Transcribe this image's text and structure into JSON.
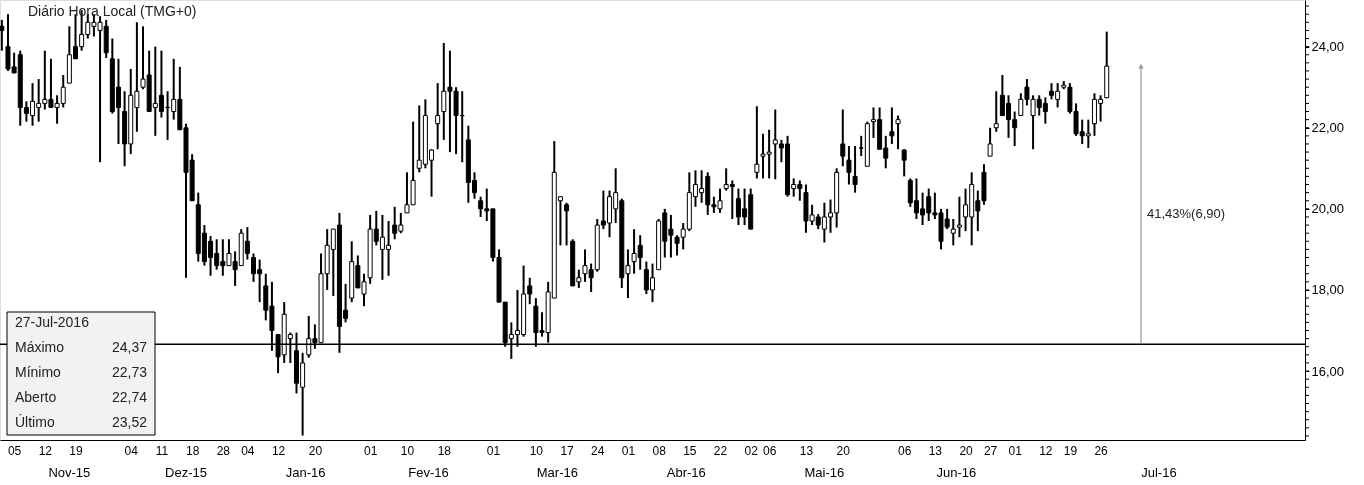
{
  "chart_data": {
    "type": "candlestick",
    "title": "Diário Hora Local (TMG+0)",
    "categories": [
      null,
      null,
      "05",
      null,
      null,
      null,
      null,
      "12",
      null,
      null,
      null,
      null,
      "19",
      null,
      null,
      null,
      null,
      null,
      null,
      null,
      null,
      "04",
      null,
      null,
      null,
      null,
      "11",
      null,
      null,
      null,
      null,
      "18",
      null,
      null,
      null,
      null,
      "28",
      null,
      null,
      null,
      "04",
      null,
      null,
      null,
      null,
      "12",
      null,
      null,
      null,
      null,
      null,
      "20",
      null,
      null,
      null,
      null,
      null,
      null,
      null,
      null,
      "01",
      null,
      null,
      null,
      null,
      null,
      "10",
      null,
      null,
      null,
      null,
      null,
      "18",
      null,
      null,
      null,
      null,
      null,
      null,
      null,
      "01",
      null,
      null,
      null,
      null,
      null,
      null,
      "10",
      null,
      null,
      null,
      null,
      "17",
      null,
      null,
      null,
      null,
      "24",
      null,
      null,
      null,
      null,
      "01",
      null,
      null,
      null,
      null,
      "08",
      null,
      null,
      null,
      null,
      "15",
      null,
      null,
      null,
      null,
      "22",
      null,
      null,
      null,
      null,
      "02",
      null,
      null,
      "06",
      null,
      null,
      null,
      null,
      null,
      "13",
      null,
      null,
      null,
      null,
      null,
      "20",
      null,
      null,
      null,
      null,
      null,
      null,
      null,
      null,
      null,
      "06",
      null,
      null,
      null,
      null,
      "13",
      null,
      null,
      null,
      null,
      "20",
      null,
      null,
      null,
      "27",
      null,
      null,
      null,
      "01",
      null,
      null,
      null,
      null,
      "12",
      null,
      null,
      null,
      "19",
      null,
      null,
      null,
      null,
      "26",
      null,
      null,
      null,
      null,
      null,
      null,
      null,
      null,
      null,
      null,
      null,
      null,
      null,
      null,
      null,
      null,
      null,
      null,
      null,
      null,
      null,
      null,
      null,
      null,
      null,
      null,
      null,
      null,
      null,
      null,
      null,
      null,
      null
    ],
    "ohlc": [
      [
        24.5,
        24.66,
        23.9,
        24.4
      ],
      [
        24.0,
        24.8,
        23.4,
        23.45
      ],
      [
        23.5,
        23.85,
        23.35,
        23.35
      ],
      [
        23.8,
        23.9,
        22.05,
        22.5
      ],
      [
        22.5,
        22.65,
        22.15,
        22.35
      ],
      [
        22.3,
        23.1,
        22.05,
        22.65
      ],
      [
        22.5,
        23.2,
        22.15,
        22.6
      ],
      [
        22.6,
        23.9,
        22.45,
        22.7
      ],
      [
        22.7,
        23.7,
        22.5,
        22.5
      ],
      [
        22.5,
        22.8,
        22.1,
        22.6
      ],
      [
        22.6,
        23.3,
        22.5,
        23.0
      ],
      [
        23.1,
        24.5,
        23.1,
        23.8
      ],
      [
        24.0,
        24.8,
        23.7,
        23.7
      ],
      [
        24.0,
        24.9,
        23.9,
        24.3
      ],
      [
        24.3,
        24.8,
        24.2,
        24.6
      ],
      [
        24.5,
        24.8,
        24.25,
        24.6
      ],
      [
        24.4,
        24.75,
        21.15,
        24.6
      ],
      [
        24.5,
        24.66,
        23.72,
        23.85
      ],
      [
        23.7,
        24.2,
        22.35,
        22.4
      ],
      [
        23.0,
        23.7,
        21.6,
        22.5
      ],
      [
        22.4,
        22.9,
        21.05,
        21.6
      ],
      [
        21.6,
        23.45,
        21.35,
        22.8
      ],
      [
        22.5,
        24.6,
        21.9,
        22.9
      ],
      [
        23.0,
        24.5,
        22.95,
        23.2
      ],
      [
        23.3,
        23.9,
        22.4,
        22.4
      ],
      [
        22.5,
        24.0,
        21.8,
        22.6
      ],
      [
        22.8,
        23.9,
        22.25,
        22.4
      ],
      [
        22.5,
        22.9,
        21.7,
        22.5
      ],
      [
        22.4,
        23.7,
        22.2,
        22.7
      ],
      [
        22.7,
        23.5,
        21.95,
        21.95
      ],
      [
        22.0,
        22.1,
        18.3,
        20.9
      ],
      [
        21.2,
        21.35,
        20.2,
        20.2
      ],
      [
        20.1,
        20.4,
        18.7,
        18.9
      ],
      [
        19.4,
        19.6,
        18.6,
        18.7
      ],
      [
        19.2,
        19.33,
        18.35,
        18.8
      ],
      [
        18.9,
        19.25,
        18.5,
        18.6
      ],
      [
        18.7,
        19.25,
        18.35,
        18.6
      ],
      [
        18.6,
        19.25,
        18.6,
        18.9
      ],
      [
        18.7,
        18.95,
        18.1,
        18.5
      ],
      [
        18.6,
        19.5,
        18.6,
        19.4
      ],
      [
        19.2,
        19.55,
        18.75,
        18.9
      ],
      [
        18.8,
        18.9,
        18.2,
        18.4
      ],
      [
        18.5,
        18.75,
        17.7,
        18.4
      ],
      [
        18.1,
        18.4,
        17.25,
        17.5
      ],
      [
        17.6,
        18.2,
        16.5,
        17.0
      ],
      [
        16.9,
        16.9,
        15.95,
        16.35
      ],
      [
        16.4,
        17.7,
        16.2,
        17.4
      ],
      [
        16.8,
        16.95,
        16.2,
        16.9
      ],
      [
        16.5,
        16.95,
        15.45,
        15.7
      ],
      [
        15.6,
        16.45,
        14.41,
        16.2
      ],
      [
        16.4,
        17.36,
        16.33,
        16.8
      ],
      [
        16.8,
        17.15,
        16.55,
        16.7
      ],
      [
        16.7,
        18.9,
        16.7,
        18.4
      ],
      [
        18.4,
        19.5,
        18.0,
        19.1
      ],
      [
        19.0,
        19.5,
        17.85,
        19.5
      ],
      [
        19.6,
        19.9,
        16.45,
        17.1
      ],
      [
        17.5,
        18.15,
        17.2,
        17.3
      ],
      [
        17.8,
        19.2,
        17.7,
        18.7
      ],
      [
        18.6,
        18.85,
        18.05,
        18.05
      ],
      [
        17.9,
        18.4,
        17.6,
        18.2
      ],
      [
        18.3,
        19.85,
        18.15,
        19.5
      ],
      [
        19.5,
        19.95,
        19.1,
        19.2
      ],
      [
        19.0,
        19.85,
        18.25,
        19.3
      ],
      [
        19.0,
        19.7,
        18.35,
        19.1
      ],
      [
        19.6,
        20.05,
        19.25,
        19.4
      ],
      [
        19.45,
        19.9,
        19.4,
        19.6
      ],
      [
        19.9,
        20.9,
        19.9,
        20.1
      ],
      [
        20.1,
        22.15,
        20.1,
        20.7
      ],
      [
        21.0,
        22.55,
        20.9,
        21.2
      ],
      [
        21.1,
        22.7,
        21.0,
        22.3
      ],
      [
        21.2,
        21.47,
        20.3,
        21.45
      ],
      [
        22.1,
        23.1,
        21.47,
        22.3
      ],
      [
        22.4,
        24.09,
        21.7,
        22.9
      ],
      [
        23.0,
        23.9,
        21.4,
        22.9
      ],
      [
        22.9,
        23.0,
        21.35,
        22.3
      ],
      [
        22.3,
        22.9,
        21.15,
        22.3
      ],
      [
        21.7,
        22.05,
        20.15,
        20.65
      ],
      [
        20.7,
        20.9,
        20.25,
        20.4
      ],
      [
        20.2,
        20.3,
        19.8,
        20.0
      ],
      [
        20.0,
        20.5,
        19.7,
        19.95
      ],
      [
        20.0,
        20.0,
        18.7,
        18.8
      ],
      [
        18.8,
        19.0,
        17.7,
        17.7
      ],
      [
        17.7,
        17.7,
        16.6,
        16.7
      ],
      [
        16.8,
        17.2,
        16.3,
        16.9
      ],
      [
        16.9,
        18.0,
        16.6,
        17.0
      ],
      [
        16.9,
        18.6,
        16.85,
        17.9
      ],
      [
        18.1,
        18.3,
        17.65,
        17.9
      ],
      [
        17.6,
        17.8,
        16.6,
        16.95
      ],
      [
        17.0,
        17.45,
        16.85,
        16.95
      ],
      [
        16.95,
        18.2,
        16.7,
        17.95
      ],
      [
        17.8,
        21.67,
        17.8,
        20.9
      ],
      [
        20.2,
        20.3,
        19.1,
        20.3
      ],
      [
        20.1,
        20.15,
        19.1,
        19.95
      ],
      [
        19.2,
        19.25,
        18.1,
        18.1
      ],
      [
        18.2,
        18.5,
        18.05,
        18.3
      ],
      [
        18.4,
        19.0,
        18.2,
        18.6
      ],
      [
        18.5,
        18.65,
        17.95,
        18.3
      ],
      [
        18.5,
        19.75,
        18.45,
        19.6
      ],
      [
        19.7,
        20.45,
        19.5,
        19.6
      ],
      [
        19.65,
        20.45,
        19.3,
        20.3
      ],
      [
        20.0,
        21.0,
        19.65,
        20.4
      ],
      [
        20.2,
        20.25,
        18.05,
        18.3
      ],
      [
        18.4,
        19.0,
        17.8,
        18.6
      ],
      [
        18.7,
        19.5,
        18.4,
        18.9
      ],
      [
        19.1,
        19.35,
        18.5,
        18.8
      ],
      [
        18.5,
        18.7,
        17.9,
        18.0
      ],
      [
        18.0,
        18.65,
        17.7,
        18.3
      ],
      [
        18.5,
        19.75,
        18.5,
        19.7
      ],
      [
        19.9,
        20.0,
        18.8,
        19.2
      ],
      [
        19.5,
        19.85,
        18.8,
        19.35
      ],
      [
        19.3,
        19.35,
        18.85,
        19.15
      ],
      [
        19.3,
        19.65,
        19.0,
        19.5
      ],
      [
        19.5,
        20.9,
        19.45,
        20.4
      ],
      [
        20.3,
        20.95,
        20.05,
        20.6
      ],
      [
        20.4,
        20.95,
        20.15,
        20.5
      ],
      [
        20.8,
        20.9,
        19.85,
        20.1
      ],
      [
        20.1,
        20.3,
        19.9,
        20.05
      ],
      [
        20.0,
        20.5,
        19.9,
        20.2
      ],
      [
        20.5,
        21.0,
        20.45,
        20.6
      ],
      [
        20.6,
        20.7,
        19.75,
        20.55
      ],
      [
        20.25,
        20.5,
        19.6,
        19.8
      ],
      [
        20.0,
        20.5,
        19.6,
        19.8
      ],
      [
        20.35,
        20.5,
        19.5,
        19.5
      ],
      [
        20.9,
        22.53,
        20.75,
        21.1
      ],
      [
        21.3,
        21.85,
        20.75,
        21.35
      ],
      [
        21.35,
        21.95,
        20.75,
        21.4
      ],
      [
        21.6,
        22.45,
        20.73,
        21.7
      ],
      [
        21.6,
        21.7,
        21.15,
        21.5
      ],
      [
        21.6,
        21.8,
        20.3,
        20.35
      ],
      [
        20.5,
        20.75,
        20.3,
        20.6
      ],
      [
        20.6,
        20.7,
        20.2,
        20.5
      ],
      [
        20.4,
        20.6,
        19.41,
        19.7
      ],
      [
        19.7,
        20.1,
        19.6,
        19.85
      ],
      [
        19.8,
        19.87,
        19.5,
        19.6
      ],
      [
        19.5,
        20.15,
        19.17,
        19.8
      ],
      [
        19.8,
        20.23,
        19.41,
        19.9
      ],
      [
        19.9,
        21.0,
        19.54,
        20.9
      ],
      [
        21.6,
        22.45,
        21.05,
        21.3
      ],
      [
        21.2,
        21.55,
        20.6,
        20.9
      ],
      [
        20.8,
        21.55,
        20.4,
        20.6
      ],
      [
        21.5,
        21.8,
        21.3,
        21.5
      ],
      [
        21.05,
        22.15,
        21.05,
        22.1
      ],
      [
        22.15,
        22.5,
        21.75,
        22.2
      ],
      [
        22.2,
        22.5,
        21.47,
        21.47
      ],
      [
        21.5,
        21.8,
        21.0,
        21.25
      ],
      [
        21.9,
        22.5,
        21.6,
        21.8
      ],
      [
        22.1,
        22.3,
        21.47,
        22.2
      ],
      [
        21.45,
        21.47,
        20.8,
        21.2
      ],
      [
        20.7,
        20.75,
        20.05,
        20.15
      ],
      [
        20.2,
        20.75,
        19.75,
        19.9
      ],
      [
        20.0,
        20.4,
        19.6,
        19.85
      ],
      [
        20.3,
        20.5,
        19.7,
        19.9
      ],
      [
        19.9,
        20.4,
        19.75,
        19.85
      ],
      [
        19.9,
        20.0,
        19.0,
        19.2
      ],
      [
        19.75,
        20.0,
        19.5,
        19.55
      ],
      [
        19.4,
        19.75,
        19.1,
        19.5
      ],
      [
        19.55,
        20.3,
        19.3,
        19.6
      ],
      [
        19.8,
        20.5,
        19.45,
        20.1
      ],
      [
        19.8,
        20.9,
        19.1,
        20.6
      ],
      [
        20.2,
        20.45,
        19.45,
        19.95
      ],
      [
        20.9,
        21.1,
        20.1,
        20.2
      ],
      [
        21.3,
        22.0,
        21.3,
        21.6
      ],
      [
        22.0,
        22.9,
        21.9,
        22.1
      ],
      [
        22.8,
        23.3,
        22.3,
        22.3
      ],
      [
        22.6,
        22.8,
        21.75,
        22.2
      ],
      [
        22.2,
        22.4,
        21.55,
        22.0
      ],
      [
        22.3,
        22.85,
        22.3,
        22.7
      ],
      [
        23.0,
        23.2,
        22.55,
        22.7
      ],
      [
        22.3,
        22.8,
        21.47,
        22.7
      ],
      [
        22.7,
        22.8,
        22.3,
        22.5
      ],
      [
        22.6,
        22.75,
        22.1,
        22.4
      ],
      [
        22.9,
        23.1,
        22.7,
        22.8
      ],
      [
        22.7,
        23.1,
        22.5,
        22.9
      ],
      [
        23.0,
        23.15,
        22.95,
        23.05
      ],
      [
        23.0,
        23.1,
        22.35,
        22.4
      ],
      [
        22.4,
        22.6,
        21.8,
        21.85
      ],
      [
        21.9,
        22.2,
        21.6,
        21.8
      ],
      [
        21.8,
        22.2,
        21.5,
        21.85
      ],
      [
        22.1,
        22.85,
        21.8,
        22.7
      ],
      [
        22.6,
        22.8,
        22.15,
        22.7
      ],
      [
        22.74,
        24.37,
        22.73,
        23.52
      ],
      null,
      null,
      null,
      null,
      null,
      null,
      null,
      null,
      null,
      null,
      null,
      null,
      null,
      null,
      null,
      null,
      null,
      null,
      null,
      null,
      null,
      null,
      null,
      null,
      null,
      null,
      null,
      null,
      null,
      null,
      null,
      null
    ],
    "ylim": [
      14.3,
      25.15
    ],
    "yticks": [
      {
        "value": 14.4,
        "label": null
      },
      {
        "value": 14.6,
        "label": null
      },
      {
        "value": 14.8,
        "label": null
      },
      {
        "value": 15.0,
        "label": null
      },
      {
        "value": 15.2,
        "label": null
      },
      {
        "value": 15.4,
        "label": null
      },
      {
        "value": 15.6,
        "label": null
      },
      {
        "value": 15.8,
        "label": null
      },
      {
        "value": 16,
        "label": "16,00"
      },
      {
        "value": 16.2,
        "label": null
      },
      {
        "value": 16.4,
        "label": null
      },
      {
        "value": 16.6,
        "label": null
      },
      {
        "value": 16.8,
        "label": null
      },
      {
        "value": 17.0,
        "label": null
      },
      {
        "value": 17.2,
        "label": null
      },
      {
        "value": 17.4,
        "label": null
      },
      {
        "value": 17.6,
        "label": null
      },
      {
        "value": 17.8,
        "label": null
      },
      {
        "value": 18,
        "label": "18,00"
      },
      {
        "value": 18.2,
        "label": null
      },
      {
        "value": 18.4,
        "label": null
      },
      {
        "value": 18.6,
        "label": null
      },
      {
        "value": 18.8,
        "label": null
      },
      {
        "value": 19.0,
        "label": null
      },
      {
        "value": 19.2,
        "label": null
      },
      {
        "value": 19.4,
        "label": null
      },
      {
        "value": 19.6,
        "label": null
      },
      {
        "value": 19.8,
        "label": null
      },
      {
        "value": 20,
        "label": "20,00"
      },
      {
        "value": 20.2,
        "label": null
      },
      {
        "value": 20.4,
        "label": null
      },
      {
        "value": 20.6,
        "label": null
      },
      {
        "value": 20.8,
        "label": null
      },
      {
        "value": 21.0,
        "label": null
      },
      {
        "value": 21.2,
        "label": null
      },
      {
        "value": 21.4,
        "label": null
      },
      {
        "value": 21.6,
        "label": null
      },
      {
        "value": 21.8,
        "label": null
      },
      {
        "value": 22,
        "label": "22,00"
      },
      {
        "value": 22.2,
        "label": null
      },
      {
        "value": 22.4,
        "label": null
      },
      {
        "value": 22.6,
        "label": null
      },
      {
        "value": 22.8,
        "label": null
      },
      {
        "value": 23.0,
        "label": null
      },
      {
        "value": 23.2,
        "label": null
      },
      {
        "value": 23.4,
        "label": null
      },
      {
        "value": 23.6,
        "label": null
      },
      {
        "value": 23.8,
        "label": null
      },
      {
        "value": 24,
        "label": "24,00"
      },
      {
        "value": 24.2,
        "label": null
      },
      {
        "value": 24.4,
        "label": null
      },
      {
        "value": 24.6,
        "label": null
      },
      {
        "value": 24.8,
        "label": null
      },
      {
        "value": 25.0,
        "label": null
      }
    ],
    "ref_lines": [
      {
        "axis": "y",
        "value": 16.66,
        "color": "#000000"
      }
    ],
    "annotations": [
      "41,43%(6,90)",
      "27-Jul-2016",
      "Máximo",
      "24,37",
      "Mínimo",
      "22,73",
      "Aberto",
      "22,74",
      "Último",
      "23,52",
      "Nov-15",
      "Dez-15",
      "Jan-16",
      "Fev-16",
      "Mar-16",
      "Abr-16",
      "Mai-16",
      "Jun-16",
      "Jul-16"
    ],
    "grid": false
  }
}
